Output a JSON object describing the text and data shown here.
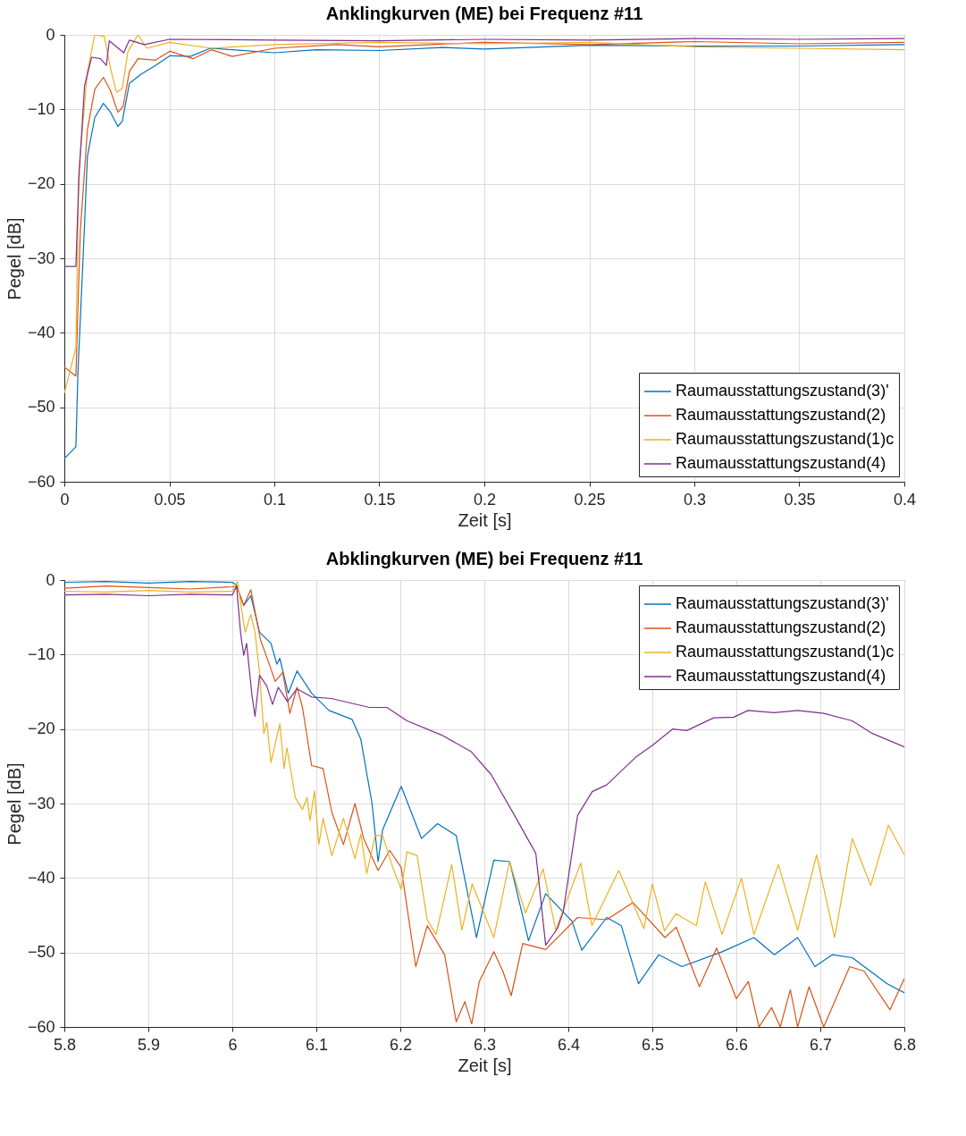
{
  "chart_data": [
    {
      "type": "line",
      "title": "Anklingkurven (ME) bei Frequenz #11",
      "xlabel": "Zeit [s]",
      "ylabel": "Pegel [dB]",
      "xlim": [
        0,
        0.4
      ],
      "xticks": [
        0,
        0.05,
        0.1,
        0.15,
        0.2,
        0.25,
        0.3,
        0.35,
        0.4
      ],
      "ylim": [
        -60,
        0
      ],
      "yticks": [
        -60,
        -50,
        -40,
        -30,
        -20,
        -10,
        0
      ],
      "grid": true,
      "legend": "bottom right",
      "series": [
        {
          "name": "Raumausstattungszustand(3)'",
          "color": "#0072bd",
          "x": [
            0,
            0.0055,
            0.0065,
            0.009,
            0.011,
            0.0145,
            0.0186,
            0.022,
            0.0255,
            0.0276,
            0.031,
            0.0364,
            0.0434,
            0.0503,
            0.06,
            0.0695,
            0.08,
            0.1,
            0.12,
            0.15,
            0.18,
            0.2,
            0.25,
            0.3,
            0.35,
            0.4
          ],
          "values": [
            -56.9,
            -55.3,
            -45.1,
            -29.5,
            -16.3,
            -11.1,
            -9.2,
            -10.4,
            -12.3,
            -11.6,
            -6.5,
            -5.3,
            -4.1,
            -2.8,
            -2.9,
            -1.8,
            -2.0,
            -2.4,
            -2.0,
            -2.1,
            -1.7,
            -1.9,
            -1.4,
            -1.5,
            -1.5,
            -1.3
          ]
        },
        {
          "name": "Raumausstattungszustand(2)",
          "color": "#d95319",
          "x": [
            0,
            0.0055,
            0.0076,
            0.011,
            0.0145,
            0.0186,
            0.022,
            0.0255,
            0.028,
            0.031,
            0.0351,
            0.0434,
            0.0503,
            0.0613,
            0.07,
            0.08,
            0.1,
            0.13,
            0.15,
            0.2,
            0.25,
            0.3,
            0.35,
            0.4
          ],
          "values": [
            -44.6,
            -45.8,
            -26.4,
            -12.7,
            -7.3,
            -5.7,
            -7.5,
            -10.4,
            -9.6,
            -4.9,
            -3.2,
            -3.4,
            -2.2,
            -3.2,
            -2.0,
            -2.9,
            -1.8,
            -1.3,
            -1.6,
            -1.0,
            -1.3,
            -0.9,
            -1.2,
            -1.0
          ]
        },
        {
          "name": "Raumausstattungszustand(1)c",
          "color": "#edb120",
          "x": [
            0,
            0.0055,
            0.0069,
            0.011,
            0.0145,
            0.019,
            0.022,
            0.0248,
            0.0276,
            0.0303,
            0.0351,
            0.0393,
            0.05,
            0.07,
            0.1,
            0.15,
            0.2,
            0.25,
            0.3,
            0.35,
            0.4
          ],
          "values": [
            -48.1,
            -42,
            -18.2,
            -4.9,
            0,
            -0.2,
            -4.5,
            -7.7,
            -7.2,
            -2.2,
            0,
            -1.8,
            -1.0,
            -1.8,
            -1.3,
            -1.0,
            -1.2,
            -1.0,
            -1.6,
            -1.8,
            -2.0
          ]
        },
        {
          "name": "Raumausstattungszustand(4)",
          "color": "#7e2f8e",
          "x": [
            0,
            0.0055,
            0.0069,
            0.0096,
            0.013,
            0.0172,
            0.02,
            0.0214,
            0.0283,
            0.031,
            0.038,
            0.05,
            0.1,
            0.15,
            0.2,
            0.25,
            0.3,
            0.35,
            0.4
          ],
          "values": [
            -31.1,
            -31.1,
            -19.4,
            -6.9,
            -3.0,
            -3.2,
            -4.1,
            -0.8,
            -2.4,
            -0.7,
            -1.3,
            -0.6,
            -0.7,
            -0.8,
            -0.6,
            -0.7,
            -0.5,
            -0.6,
            -0.5
          ]
        }
      ]
    },
    {
      "type": "line",
      "title": "Abklingkurven (ME) bei Frequenz #11",
      "xlabel": "Zeit [s]",
      "ylabel": "Pegel [dB]",
      "xlim": [
        5.8,
        6.8
      ],
      "xticks": [
        5.8,
        5.9,
        6,
        6.1,
        6.2,
        6.3,
        6.4,
        6.5,
        6.6,
        6.7,
        6.8
      ],
      "ylim": [
        -60,
        0
      ],
      "yticks": [
        -60,
        -50,
        -40,
        -30,
        -20,
        -10,
        0
      ],
      "grid": true,
      "legend": "top right",
      "series": [
        {
          "name": "Raumausstattungszustand(3)'",
          "color": "#0072bd",
          "x": [
            5.8,
            5.85,
            5.9,
            5.95,
            6.0,
            6.005,
            6.0136,
            6.022,
            6.0324,
            6.046,
            6.053,
            6.0565,
            6.0665,
            6.077,
            6.0944,
            6.115,
            6.1425,
            6.153,
            6.1663,
            6.1735,
            6.179,
            6.201,
            6.2252,
            6.2442,
            6.2665,
            6.2906,
            6.3113,
            6.3302,
            6.3526,
            6.373,
            6.4043,
            6.416,
            6.4457,
            6.463,
            6.4835,
            6.5077,
            6.5352,
            6.583,
            6.621,
            6.6453,
            6.673,
            6.6935,
            6.714,
            6.738,
            6.7797,
            6.8
          ],
          "values": [
            -0.3,
            -0.2,
            -0.4,
            -0.2,
            -0.3,
            -0.7,
            -3.4,
            -2.1,
            -7.0,
            -8.5,
            -11.3,
            -10.5,
            -15.2,
            -12.2,
            -15.2,
            -17.5,
            -18.7,
            -21.4,
            -30,
            -37.8,
            -33.5,
            -27.7,
            -34.7,
            -32.7,
            -34.3,
            -48,
            -37.6,
            -37.8,
            -48.4,
            -42.1,
            -45.8,
            -49.7,
            -45.3,
            -46.4,
            -54.2,
            -50.3,
            -51.9,
            -49.9,
            -48,
            -50.3,
            -48,
            -51.9,
            -50.3,
            -50.7,
            -54.2,
            -55.4
          ]
        },
        {
          "name": "Raumausstattungszustand(2)",
          "color": "#d95319",
          "x": [
            5.8,
            5.85,
            5.9,
            5.95,
            6.0,
            6.005,
            6.0136,
            6.022,
            6.0337,
            6.044,
            6.051,
            6.06,
            6.0685,
            6.077,
            6.0835,
            6.0944,
            6.108,
            6.1185,
            6.1323,
            6.146,
            6.1564,
            6.1735,
            6.1874,
            6.201,
            6.2184,
            6.232,
            6.2527,
            6.2665,
            6.2768,
            6.285,
            6.294,
            6.3113,
            6.322,
            6.332,
            6.3457,
            6.373,
            6.411,
            6.4457,
            6.477,
            6.515,
            6.5285,
            6.556,
            6.5765,
            6.6,
            6.6143,
            6.627,
            6.6419,
            6.6523,
            6.6643,
            6.673,
            6.6866,
            6.704,
            6.735,
            6.752,
            6.783,
            6.8
          ],
          "values": [
            -1.1,
            -0.8,
            -1.0,
            -1.2,
            -0.9,
            -0.8,
            -3.4,
            -1.3,
            -8.1,
            -11.3,
            -13.6,
            -12.4,
            -17.9,
            -14.4,
            -17.1,
            -24.9,
            -25.3,
            -31.2,
            -35.5,
            -30,
            -34.7,
            -39,
            -36.3,
            -38.6,
            -51.9,
            -46.4,
            -50.3,
            -59.3,
            -56.6,
            -59.6,
            -53.9,
            -49.9,
            -52.5,
            -55.8,
            -48.8,
            -49.6,
            -45.3,
            -45.6,
            -43.3,
            -48,
            -46.6,
            -54.6,
            -49.4,
            -56.2,
            -53.9,
            -60,
            -57.4,
            -60,
            -55,
            -60,
            -54.6,
            -60,
            -51.9,
            -52.5,
            -57.7,
            -53.5
          ]
        },
        {
          "name": "Raumausstattungszustand(1)c",
          "color": "#edb120",
          "x": [
            5.8,
            5.85,
            5.9,
            5.95,
            6.0,
            6.006,
            6.0153,
            6.022,
            6.027,
            6.0324,
            6.0375,
            6.041,
            6.046,
            6.0565,
            6.0616,
            6.065,
            6.075,
            6.0835,
            6.089,
            6.0925,
            6.0978,
            6.103,
            6.108,
            6.1185,
            6.1323,
            6.146,
            6.153,
            6.16,
            6.17,
            6.179,
            6.191,
            6.201,
            6.208,
            6.22,
            6.232,
            6.2425,
            6.2612,
            6.2733,
            6.2855,
            6.3113,
            6.33,
            6.349,
            6.37,
            6.385,
            6.4147,
            6.428,
            6.46,
            6.49,
            6.5,
            6.5145,
            6.528,
            6.5524,
            6.563,
            6.583,
            6.606,
            6.621,
            6.65,
            6.673,
            6.6955,
            6.717,
            6.738,
            6.76,
            6.781,
            6.8
          ],
          "values": [
            -1.5,
            -1.6,
            -1.4,
            -1.6,
            -1.5,
            -0.2,
            -7.0,
            -4.6,
            -7.0,
            -12.4,
            -20.6,
            -19.1,
            -24.5,
            -19.3,
            -25.3,
            -22.5,
            -29.2,
            -30.8,
            -29.2,
            -32.3,
            -28.3,
            -35.5,
            -32,
            -37,
            -32,
            -37.4,
            -34.1,
            -39.4,
            -34.3,
            -34.3,
            -38.6,
            -41.5,
            -36.5,
            -37,
            -45.6,
            -47.6,
            -38.2,
            -47,
            -40.8,
            -48,
            -37.8,
            -44.7,
            -38.8,
            -47,
            -38,
            -46.4,
            -39,
            -46.8,
            -40.8,
            -47.1,
            -44.8,
            -46.4,
            -40.5,
            -47.6,
            -40,
            -47.6,
            -38.2,
            -47,
            -36.9,
            -48,
            -34.7,
            -41,
            -32.9,
            -36.9
          ]
        },
        {
          "name": "Raumausstattungszustand(4)",
          "color": "#7e2f8e",
          "x": [
            5.8,
            5.85,
            5.9,
            5.95,
            6.0,
            6.005,
            6.01,
            6.0136,
            6.017,
            6.0235,
            6.027,
            6.0324,
            6.041,
            6.0478,
            6.0547,
            6.0656,
            6.077,
            6.0944,
            6.118,
            6.163,
            6.184,
            6.208,
            6.249,
            6.284,
            6.308,
            6.336,
            6.3613,
            6.373,
            6.387,
            6.394,
            6.411,
            6.4285,
            6.4457,
            6.48,
            6.5,
            6.524,
            6.541,
            6.573,
            6.597,
            6.614,
            6.645,
            6.673,
            6.704,
            6.738,
            6.762,
            6.8
          ],
          "values": [
            -2.0,
            -1.9,
            -2.1,
            -1.9,
            -2.0,
            -0.8,
            -7.3,
            -10.1,
            -8.5,
            -15.6,
            -18.3,
            -12.8,
            -14.2,
            -16.7,
            -14.4,
            -16.3,
            -14.6,
            -15.7,
            -15.9,
            -17.1,
            -17.1,
            -18.9,
            -20.8,
            -23,
            -26.1,
            -31.6,
            -36.7,
            -49,
            -46.8,
            -44.5,
            -31.6,
            -28.4,
            -27.5,
            -23.8,
            -22.2,
            -20,
            -20.2,
            -18.5,
            -18.4,
            -17.5,
            -17.8,
            -17.5,
            -17.9,
            -18.9,
            -20.6,
            -22.4
          ]
        }
      ]
    }
  ]
}
